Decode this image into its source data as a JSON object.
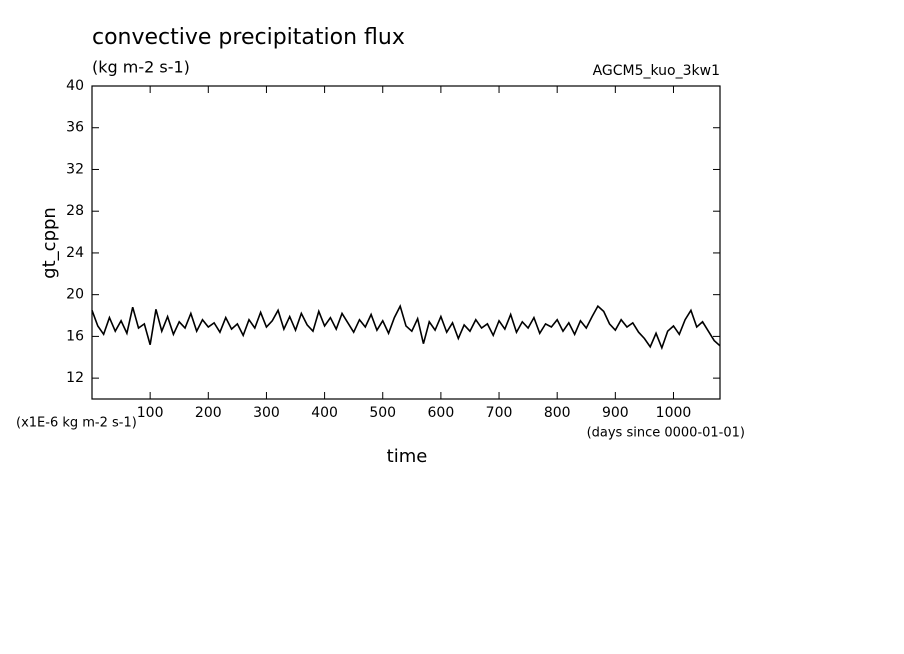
{
  "chart_data": {
    "type": "line",
    "title": "convective precipitation flux",
    "subtitle": "(kg m-2 s-1)",
    "annotation": "AGCM5_kuo_3kw1",
    "ylabel": "gt_cppn",
    "xlabel": "time",
    "yunit": "(x1E-6 kg m-2 s-1)",
    "xunit": "(days since 0000-01-01)",
    "color": "#000000",
    "xlim": [
      0,
      1080
    ],
    "ylim": [
      10,
      40
    ],
    "xticks": [
      100,
      200,
      300,
      400,
      500,
      600,
      700,
      800,
      900,
      1000
    ],
    "yticks": [
      12,
      16,
      20,
      24,
      28,
      32,
      36,
      40
    ],
    "x": [
      0,
      10,
      20,
      30,
      40,
      50,
      60,
      70,
      80,
      90,
      100,
      110,
      120,
      130,
      140,
      150,
      160,
      170,
      180,
      190,
      200,
      210,
      220,
      230,
      240,
      250,
      260,
      270,
      280,
      290,
      300,
      310,
      320,
      330,
      340,
      350,
      360,
      370,
      380,
      390,
      400,
      410,
      420,
      430,
      440,
      450,
      460,
      470,
      480,
      490,
      500,
      510,
      520,
      530,
      540,
      550,
      560,
      570,
      580,
      590,
      600,
      610,
      620,
      630,
      640,
      650,
      660,
      670,
      680,
      690,
      700,
      710,
      720,
      730,
      740,
      750,
      760,
      770,
      780,
      790,
      800,
      810,
      820,
      830,
      840,
      850,
      860,
      870,
      880,
      890,
      900,
      910,
      920,
      930,
      940,
      950,
      960,
      970,
      980,
      990,
      1000,
      1010,
      1020,
      1030,
      1040,
      1050,
      1060,
      1070,
      1080
    ],
    "values": [
      18.5,
      17,
      16.2,
      17.8,
      16.5,
      17.5,
      16.3,
      18.8,
      16.8,
      17.2,
      15.2,
      18.6,
      16.5,
      17.9,
      16.2,
      17.4,
      16.8,
      18.2,
      16.5,
      17.6,
      16.9,
      17.3,
      16.4,
      17.8,
      16.7,
      17.2,
      16.1,
      17.6,
      16.8,
      18.3,
      16.9,
      17.5,
      18.5,
      16.7,
      17.9,
      16.6,
      18.2,
      17.1,
      16.5,
      18.4,
      17.0,
      17.8,
      16.7,
      18.2,
      17.3,
      16.4,
      17.6,
      16.9,
      18.1,
      16.6,
      17.5,
      16.3,
      17.8,
      18.9,
      17.0,
      16.5,
      17.7,
      15.3,
      17.4,
      16.6,
      17.9,
      16.4,
      17.3,
      15.8,
      17.1,
      16.5,
      17.6,
      16.8,
      17.2,
      16.1,
      17.5,
      16.7,
      18.1,
      16.4,
      17.4,
      16.8,
      17.8,
      16.3,
      17.2,
      16.9,
      17.6,
      16.5,
      17.3,
      16.2,
      17.5,
      16.8,
      17.9,
      18.9,
      18.4,
      17.2,
      16.6,
      17.6,
      16.9,
      17.3,
      16.4,
      15.8,
      15.0,
      16.3,
      14.9,
      16.5,
      17.0,
      16.2,
      17.6,
      18.5,
      16.9,
      17.4,
      16.5,
      15.6,
      15.1
    ]
  }
}
